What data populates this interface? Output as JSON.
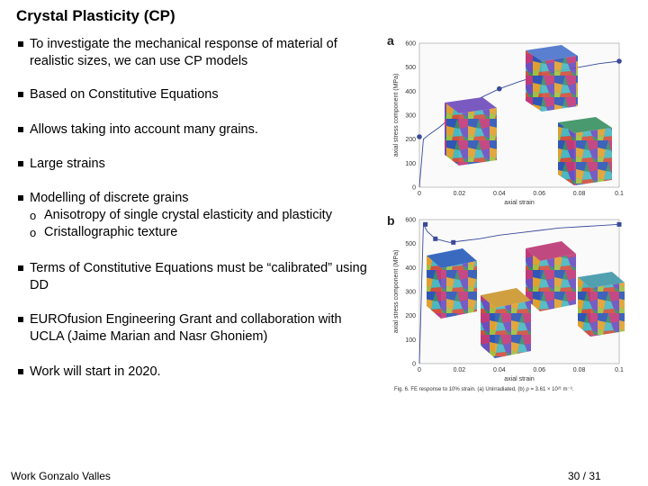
{
  "title": "Crystal Plasticity (CP)",
  "bullets": [
    {
      "text": "To investigate the mechanical response of material of realistic sizes, we can use CP models"
    },
    {
      "text": "Based on Constitutive Equations"
    },
    {
      "text": "Allows taking into account many grains."
    },
    {
      "text": "Large strains"
    },
    {
      "text": "Modelling of discrete grains",
      "subs": [
        "Anisotropy of single crystal elasticity and plasticity",
        "Cristallographic texture"
      ]
    },
    {
      "text": "Terms of Constitutive Equations must be “calibrated” using DD"
    },
    {
      "text": "EUROfusion Engineering Grant and collaboration with UCLA (Jaime Marian and Nasr Ghoniem)"
    },
    {
      "text": "Work will start in 2020."
    }
  ],
  "footer": {
    "author": "Work Gonzalo Valles",
    "page": "30 / 31"
  },
  "figure": {
    "caption": "Fig. 6.  FE response to 10% strain. (a) Unirradiated, (b) ρ = 3.61 × 10²¹ m⁻³."
  },
  "chart_data": [
    {
      "type": "line",
      "panel": "a",
      "xlabel": "axial strain",
      "ylabel": "axial stress component (MPa)",
      "xlim": [
        0,
        0.1
      ],
      "ylim": [
        0,
        600
      ],
      "xticks": [
        "0",
        "0.02",
        "0.04",
        "0.06",
        "0.08",
        "0.1"
      ],
      "yticks": [
        "0",
        "100",
        "200",
        "300",
        "400",
        "500",
        "600"
      ],
      "series": [
        {
          "x": [
            0,
            0.002,
            0.005,
            0.01,
            0.02,
            0.03,
            0.04,
            0.05,
            0.06,
            0.07,
            0.08,
            0.09,
            0.1
          ],
          "y": [
            0,
            200,
            220,
            250,
            320,
            370,
            410,
            440,
            465,
            485,
            500,
            515,
            525
          ],
          "markers": [
            [
              0.0,
              210
            ],
            [
              0.04,
              410
            ],
            [
              0.1,
              525
            ]
          ],
          "color": "#3a4a9a"
        }
      ]
    },
    {
      "type": "line",
      "panel": "b",
      "xlabel": "axial strain",
      "ylabel": "axial stress component (MPa)",
      "xlim": [
        0,
        0.1
      ],
      "ylim": [
        0,
        600
      ],
      "xticks": [
        "0",
        "0.02",
        "0.04",
        "0.06",
        "0.08",
        "0.1"
      ],
      "yticks": [
        "0",
        "100",
        "200",
        "300",
        "400",
        "500",
        "600"
      ],
      "series": [
        {
          "x": [
            0,
            0.002,
            0.004,
            0.008,
            0.015,
            0.02,
            0.03,
            0.04,
            0.05,
            0.06,
            0.07,
            0.08,
            0.09,
            0.1
          ],
          "y": [
            0,
            580,
            550,
            520,
            505,
            510,
            520,
            535,
            545,
            555,
            565,
            570,
            575,
            580
          ],
          "markers": [
            [
              0.003,
              580
            ],
            [
              0.008,
              520
            ],
            [
              0.017,
              505
            ],
            [
              0.1,
              580
            ]
          ],
          "color": "#3a4a9a"
        }
      ]
    }
  ]
}
